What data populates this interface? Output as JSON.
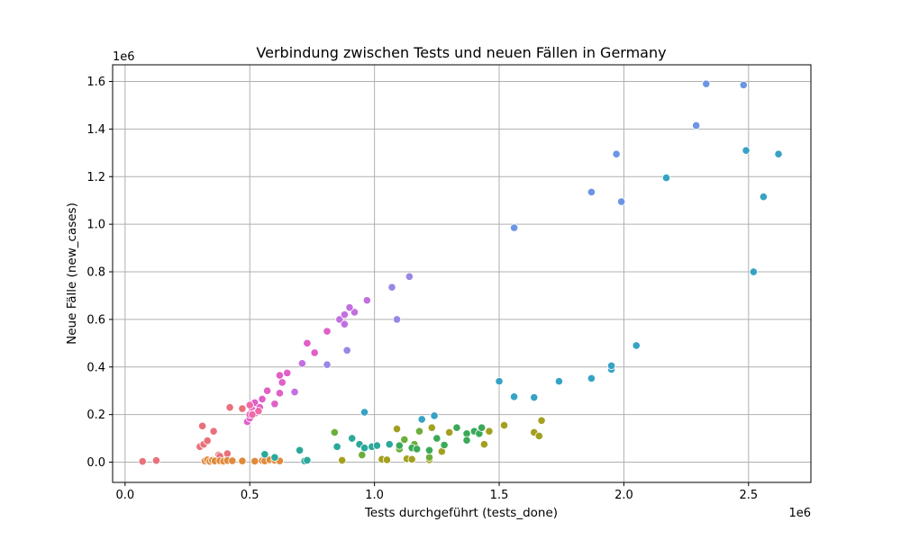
{
  "chart_data": {
    "type": "scatter",
    "title": "Verbindung zwischen Tests und neuen Fällen in Germany",
    "xlabel": "Tests durchgeführt (tests_done)",
    "ylabel": "Neue Fälle (new_cases)",
    "x_exponent": "1e6",
    "y_exponent": "1e6",
    "xlim": [
      -0.05,
      2.75
    ],
    "ylim": [
      -0.085,
      1.67
    ],
    "x_ticks": [
      {
        "value": 0.0,
        "label": "0.0"
      },
      {
        "value": 0.5,
        "label": "0.5"
      },
      {
        "value": 1.0,
        "label": "1.0"
      },
      {
        "value": 1.5,
        "label": "1.5"
      },
      {
        "value": 2.0,
        "label": "2.0"
      },
      {
        "value": 2.5,
        "label": "2.5"
      }
    ],
    "y_ticks": [
      {
        "value": 0.0,
        "label": "0.0"
      },
      {
        "value": 0.2,
        "label": "0.2"
      },
      {
        "value": 0.4,
        "label": "0.4"
      },
      {
        "value": 0.6,
        "label": "0.6"
      },
      {
        "value": 0.8,
        "label": "0.8"
      },
      {
        "value": 1.0,
        "label": "1.0"
      },
      {
        "value": 1.2,
        "label": "1.2"
      },
      {
        "value": 1.4,
        "label": "1.4"
      },
      {
        "value": 1.6,
        "label": "1.6"
      }
    ],
    "grid": true,
    "legend": false,
    "series": [
      {
        "color": "#e8717b",
        "points": [
          [
            0.07,
            0.003
          ],
          [
            0.125,
            0.007
          ],
          [
            0.3,
            0.065
          ],
          [
            0.31,
            0.152
          ],
          [
            0.315,
            0.075
          ],
          [
            0.33,
            0.09
          ],
          [
            0.355,
            0.13
          ],
          [
            0.375,
            0.03
          ],
          [
            0.38,
            0.025
          ],
          [
            0.41,
            0.036
          ],
          [
            0.42,
            0.23
          ],
          [
            0.47,
            0.225
          ]
        ]
      },
      {
        "color": "#e08a3c",
        "points": [
          [
            0.32,
            0.005
          ],
          [
            0.33,
            0.01
          ],
          [
            0.34,
            0.003
          ],
          [
            0.35,
            0.008
          ],
          [
            0.36,
            0.005
          ],
          [
            0.38,
            0.006
          ],
          [
            0.395,
            0.004
          ],
          [
            0.41,
            0.007
          ],
          [
            0.43,
            0.006
          ],
          [
            0.47,
            0.005
          ],
          [
            0.52,
            0.004
          ],
          [
            0.55,
            0.006
          ],
          [
            0.56,
            0.005
          ],
          [
            0.58,
            0.01
          ],
          [
            0.6,
            0.008
          ],
          [
            0.62,
            0.005
          ]
        ]
      },
      {
        "color": "#a3a01f",
        "points": [
          [
            0.87,
            0.008
          ],
          [
            1.03,
            0.012
          ],
          [
            1.05,
            0.01
          ],
          [
            1.13,
            0.014
          ],
          [
            1.15,
            0.012
          ],
          [
            1.22,
            0.01
          ],
          [
            1.27,
            0.045
          ],
          [
            1.44,
            0.075
          ],
          [
            1.64,
            0.125
          ],
          [
            1.66,
            0.11
          ],
          [
            1.67,
            0.175
          ],
          [
            1.09,
            0.14
          ],
          [
            1.23,
            0.145
          ],
          [
            1.46,
            0.13
          ],
          [
            1.52,
            0.155
          ],
          [
            1.3,
            0.125
          ]
        ]
      },
      {
        "color": "#6cae3a",
        "points": [
          [
            0.84,
            0.125
          ],
          [
            0.95,
            0.03
          ],
          [
            1.1,
            0.055
          ],
          [
            1.12,
            0.095
          ],
          [
            1.16,
            0.075
          ],
          [
            1.18,
            0.13
          ],
          [
            1.22,
            0.02
          ]
        ]
      },
      {
        "color": "#3aaa58",
        "points": [
          [
            1.1,
            0.07
          ],
          [
            1.15,
            0.06
          ],
          [
            1.17,
            0.055
          ],
          [
            1.22,
            0.05
          ],
          [
            1.25,
            0.1
          ],
          [
            1.28,
            0.072
          ],
          [
            1.33,
            0.145
          ],
          [
            1.37,
            0.12
          ],
          [
            1.37,
            0.092
          ],
          [
            1.4,
            0.13
          ],
          [
            1.42,
            0.12
          ],
          [
            1.43,
            0.145
          ]
        ]
      },
      {
        "color": "#2aa89a",
        "points": [
          [
            0.56,
            0.033
          ],
          [
            0.6,
            0.02
          ],
          [
            0.7,
            0.05
          ],
          [
            0.72,
            0.005
          ],
          [
            0.73,
            0.008
          ],
          [
            0.85,
            0.065
          ],
          [
            0.91,
            0.1
          ],
          [
            0.94,
            0.075
          ],
          [
            0.96,
            0.06
          ],
          [
            0.99,
            0.065
          ],
          [
            1.01,
            0.07
          ],
          [
            1.06,
            0.075
          ]
        ]
      },
      {
        "color": "#36a3c4",
        "points": [
          [
            0.96,
            0.21
          ],
          [
            1.19,
            0.18
          ],
          [
            1.24,
            0.195
          ],
          [
            1.5,
            0.34
          ],
          [
            1.56,
            0.275
          ],
          [
            1.64,
            0.272
          ],
          [
            1.74,
            0.34
          ],
          [
            1.87,
            0.352
          ],
          [
            1.95,
            0.39
          ],
          [
            1.95,
            0.405
          ],
          [
            2.05,
            0.49
          ],
          [
            2.17,
            1.195
          ],
          [
            2.49,
            1.31
          ],
          [
            2.52,
            0.8
          ],
          [
            2.56,
            1.115
          ],
          [
            2.62,
            1.295
          ]
        ]
      },
      {
        "color": "#6c95e3",
        "points": [
          [
            1.56,
            0.985
          ],
          [
            1.87,
            1.135
          ],
          [
            1.97,
            1.295
          ],
          [
            1.99,
            1.095
          ],
          [
            2.29,
            1.415
          ],
          [
            2.33,
            1.59
          ],
          [
            2.48,
            1.585
          ]
        ]
      },
      {
        "color": "#9a86e6",
        "points": [
          [
            0.81,
            0.41
          ],
          [
            0.89,
            0.47
          ],
          [
            1.07,
            0.735
          ],
          [
            1.09,
            0.6
          ],
          [
            1.14,
            0.78
          ]
        ]
      },
      {
        "color": "#c26fe0",
        "points": [
          [
            0.68,
            0.295
          ],
          [
            0.71,
            0.415
          ],
          [
            0.86,
            0.6
          ],
          [
            0.88,
            0.58
          ],
          [
            0.92,
            0.63
          ],
          [
            0.97,
            0.68
          ],
          [
            0.9,
            0.65
          ],
          [
            0.88,
            0.62
          ]
        ]
      },
      {
        "color": "#e060c8",
        "points": [
          [
            0.49,
            0.17
          ],
          [
            0.5,
            0.185
          ],
          [
            0.51,
            0.22
          ],
          [
            0.52,
            0.25
          ],
          [
            0.53,
            0.21
          ],
          [
            0.55,
            0.265
          ],
          [
            0.57,
            0.3
          ],
          [
            0.6,
            0.245
          ],
          [
            0.62,
            0.29
          ],
          [
            0.62,
            0.365
          ],
          [
            0.63,
            0.335
          ],
          [
            0.65,
            0.375
          ],
          [
            0.73,
            0.5
          ],
          [
            0.76,
            0.46
          ],
          [
            0.81,
            0.55
          ],
          [
            0.5,
            0.2
          ],
          [
            0.52,
            0.205
          ],
          [
            0.54,
            0.23
          ]
        ]
      },
      {
        "color": "#ef6ba6",
        "points": [
          [
            0.5,
            0.24
          ],
          [
            0.51,
            0.2
          ],
          [
            0.535,
            0.215
          ]
        ]
      }
    ]
  }
}
